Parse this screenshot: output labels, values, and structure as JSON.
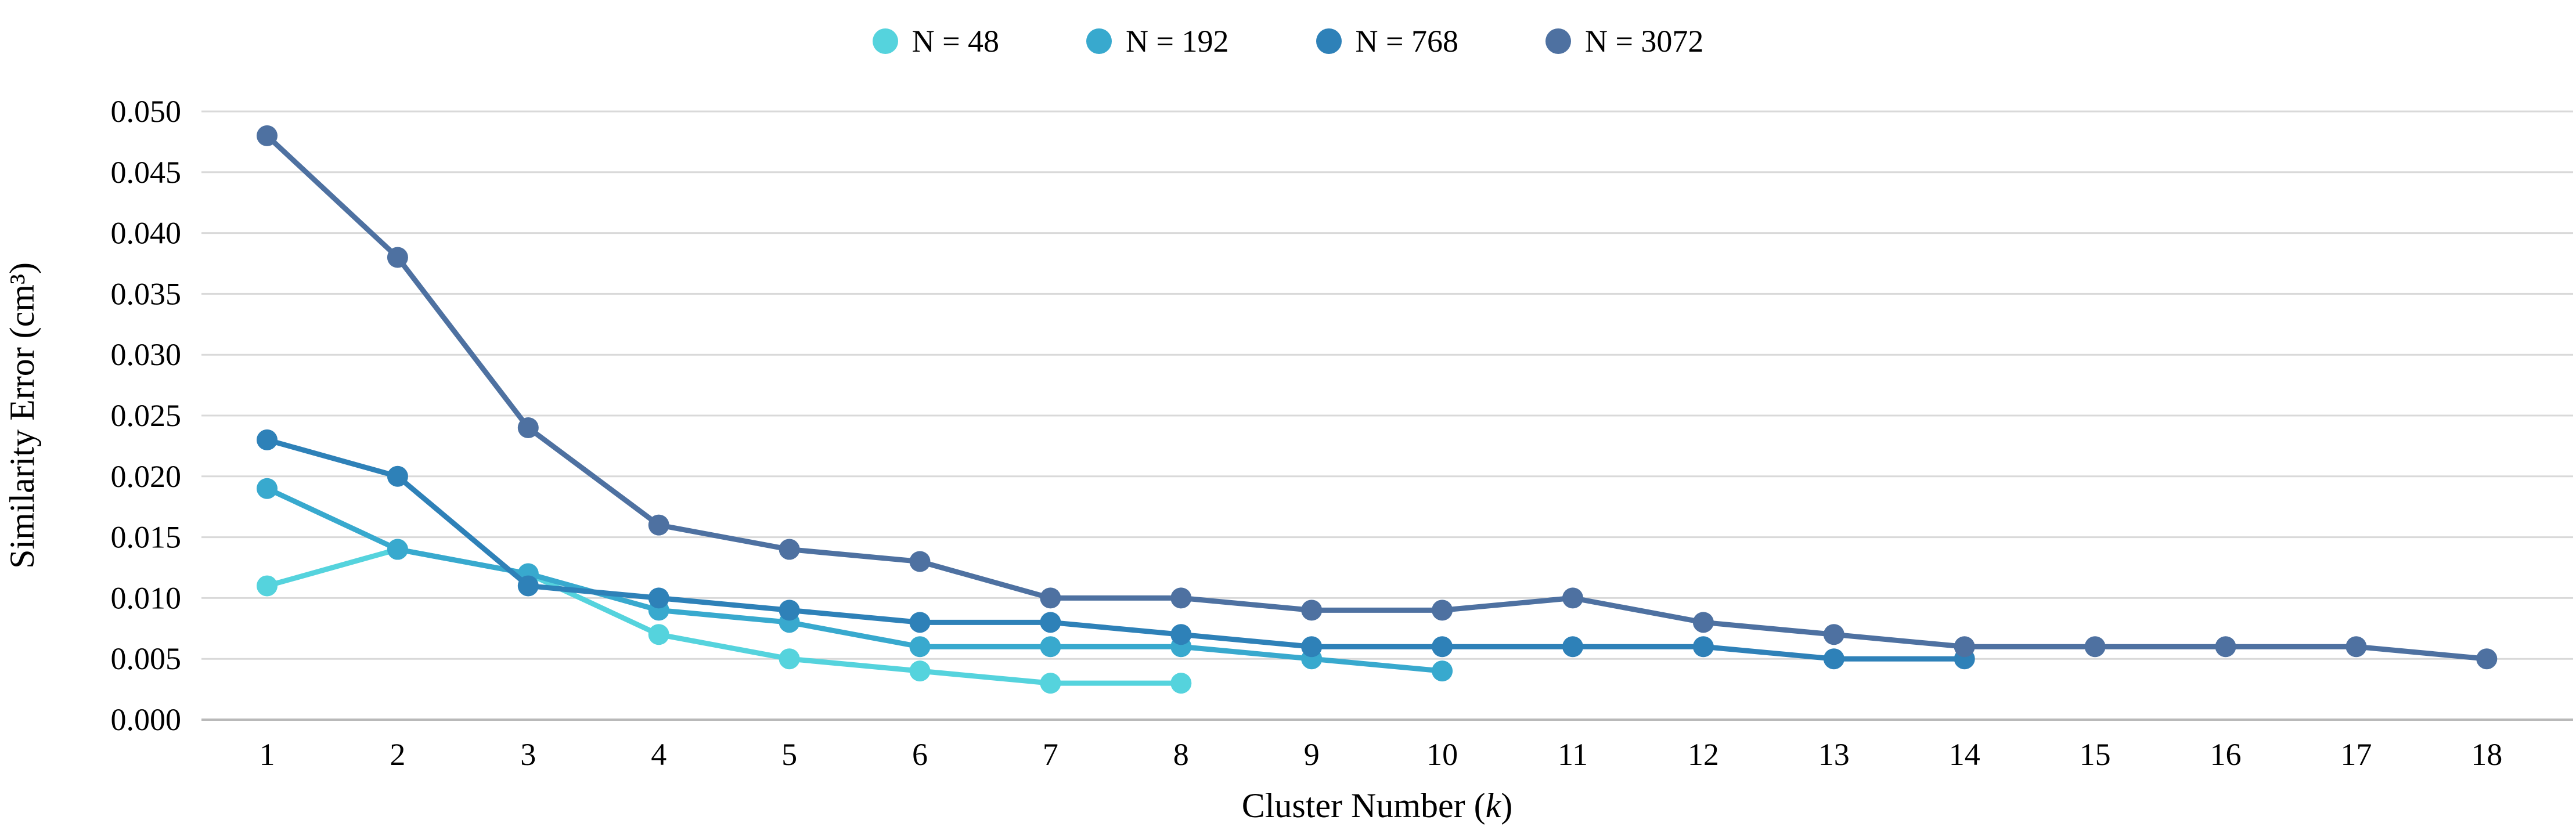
{
  "axis": {
    "x_title_prefix": "Cluster Number (",
    "x_title_k": "k",
    "x_title_suffix": ")",
    "y_title": "Similarity Error (cm³)"
  },
  "chart_data": {
    "type": "line",
    "title": "",
    "xlabel": "Cluster Number (k)",
    "ylabel": "Similarity Error (cm³)",
    "x": [
      1,
      2,
      3,
      4,
      5,
      6,
      7,
      8,
      9,
      10,
      11,
      12,
      13,
      14,
      15,
      16,
      17,
      18
    ],
    "xtick_labels": [
      "1",
      "2",
      "3",
      "4",
      "5",
      "6",
      "7",
      "8",
      "9",
      "10",
      "11",
      "12",
      "13",
      "14",
      "15",
      "16",
      "17",
      "18"
    ],
    "ytick_labels": [
      "0.000",
      "0.005",
      "0.010",
      "0.015",
      "0.020",
      "0.025",
      "0.030",
      "0.035",
      "0.040",
      "0.045",
      "0.050"
    ],
    "ylim": [
      0,
      0.05
    ],
    "ytick_step": 0.005,
    "grid": "horizontal",
    "legend_position": "top-center",
    "colors": {
      "grid": "#d9d9d9",
      "axis_line": "#b9b9b9",
      "text": "#000000"
    },
    "series": [
      {
        "name": "N = 48",
        "color": "#55d3dd",
        "values": [
          0.011,
          0.014,
          0.012,
          0.007,
          0.005,
          0.004,
          0.003,
          0.003
        ]
      },
      {
        "name": "N = 192",
        "color": "#38a9ce",
        "values": [
          0.019,
          0.014,
          0.012,
          0.009,
          0.008,
          0.006,
          0.006,
          0.006,
          0.005,
          0.004
        ]
      },
      {
        "name": "N = 768",
        "color": "#2e81b8",
        "values": [
          0.023,
          0.02,
          0.011,
          0.01,
          0.009,
          0.008,
          0.008,
          0.007,
          0.006,
          0.006,
          0.006,
          0.006,
          0.005,
          0.005
        ]
      },
      {
        "name": "N = 3072",
        "color": "#4e71a1",
        "values": [
          0.048,
          0.038,
          0.024,
          0.016,
          0.014,
          0.013,
          0.01,
          0.01,
          0.009,
          0.009,
          0.01,
          0.008,
          0.007,
          0.006,
          0.006,
          0.006,
          0.006,
          0.005
        ]
      }
    ]
  }
}
